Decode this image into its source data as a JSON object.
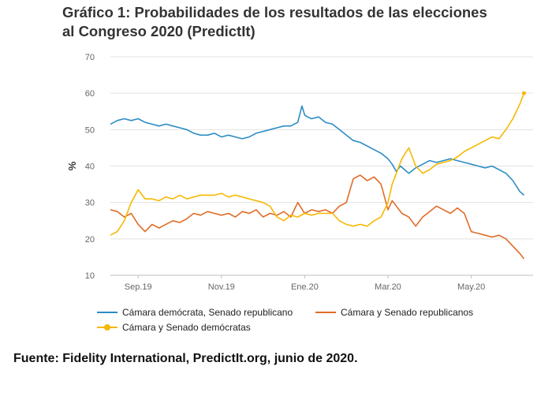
{
  "title_line1": "Gráfico 1: Probabilidades de los resultados de las elecciones",
  "title_line2": "al Congreso 2020 (PredictIt)",
  "source": "Fuente: Fidelity International, PredictIt.org, junio de 2020.",
  "chart_data": {
    "type": "line",
    "title": "Gráfico 1: Probabilidades de los resultados de las elecciones al Congreso 2020 (PredictIt)",
    "ylabel": "%",
    "xlabel": "",
    "ylim": [
      10,
      70
    ],
    "yticks": [
      "10",
      "20",
      "30",
      "40",
      "50",
      "60",
      "70"
    ],
    "xticks": [
      "Sep.19",
      "Nov.19",
      "Ene.20",
      "Mar.20",
      "May.20"
    ],
    "xlim": [
      0,
      300
    ],
    "xtick_positions": [
      20,
      80,
      140,
      200,
      260
    ],
    "grid": "horizontal",
    "legend_position": "bottom",
    "series": [
      {
        "name": "Cámara demócrata, Senado republicano",
        "color": "#2b8cc4",
        "marker": false,
        "x": [
          0,
          5,
          10,
          15,
          20,
          25,
          30,
          35,
          40,
          45,
          50,
          55,
          60,
          65,
          70,
          75,
          80,
          85,
          90,
          95,
          100,
          105,
          110,
          115,
          120,
          125,
          130,
          135,
          138,
          140,
          142,
          145,
          150,
          155,
          160,
          165,
          170,
          175,
          180,
          185,
          190,
          195,
          200,
          203,
          206,
          209,
          212,
          215,
          220,
          225,
          230,
          235,
          240,
          245,
          250,
          255,
          260,
          265,
          270,
          275,
          280,
          285,
          290,
          295,
          298
        ],
        "y": [
          51.5,
          52.5,
          53,
          52.5,
          53,
          52,
          51.5,
          51,
          51.5,
          51,
          50.5,
          50,
          49,
          48.5,
          48.5,
          49,
          48,
          48.5,
          48,
          47.5,
          48,
          49,
          49.5,
          50,
          50.5,
          51,
          51,
          52,
          56.5,
          54,
          53.5,
          53,
          53.5,
          52,
          51.5,
          50,
          48.5,
          47,
          46.5,
          45.5,
          44.5,
          43.5,
          42,
          40.5,
          38.5,
          40,
          39,
          38,
          39.5,
          40.5,
          41.5,
          41,
          41.5,
          42,
          41.5,
          41,
          40.5,
          40,
          39.5,
          40,
          39,
          38,
          36,
          33,
          32
        ]
      },
      {
        "name": "Cámara y Senado republicanos",
        "color": "#e06b27",
        "marker": false,
        "x": [
          0,
          5,
          10,
          15,
          20,
          25,
          30,
          35,
          40,
          45,
          50,
          55,
          60,
          65,
          70,
          75,
          80,
          85,
          90,
          95,
          100,
          105,
          110,
          115,
          120,
          125,
          130,
          135,
          140,
          145,
          150,
          155,
          160,
          165,
          170,
          175,
          180,
          185,
          190,
          195,
          200,
          203,
          206,
          210,
          215,
          220,
          225,
          230,
          235,
          240,
          245,
          250,
          255,
          260,
          265,
          270,
          275,
          280,
          285,
          290,
          295,
          298
        ],
        "y": [
          28,
          27.5,
          26,
          27,
          24,
          22,
          24,
          23,
          24,
          25,
          24.5,
          25.5,
          27,
          26.5,
          27.5,
          27,
          26.5,
          27,
          26,
          27.5,
          27,
          28,
          26,
          27,
          26.5,
          27.5,
          26,
          30,
          27,
          28,
          27.5,
          28,
          27,
          29,
          30,
          36.5,
          37.5,
          36,
          37,
          35,
          28,
          30.5,
          29,
          27,
          26,
          23.5,
          26,
          27.5,
          29,
          28,
          27,
          28.5,
          27,
          22,
          21.5,
          21,
          20.5,
          21,
          20,
          18,
          16,
          14.5
        ]
      },
      {
        "name": "Cámara y Senado demócratas",
        "color": "#f5b800",
        "marker": true,
        "x": [
          0,
          5,
          10,
          15,
          20,
          25,
          30,
          35,
          40,
          45,
          50,
          55,
          60,
          65,
          70,
          75,
          80,
          85,
          90,
          95,
          100,
          105,
          110,
          115,
          120,
          125,
          130,
          135,
          140,
          145,
          150,
          155,
          160,
          165,
          170,
          175,
          180,
          185,
          190,
          195,
          200,
          203,
          206,
          210,
          215,
          220,
          225,
          230,
          235,
          240,
          245,
          250,
          255,
          260,
          265,
          270,
          275,
          280,
          285,
          290,
          295,
          298
        ],
        "y": [
          21,
          22,
          25,
          30,
          33.5,
          31,
          31,
          30.5,
          31.5,
          31,
          32,
          31,
          31.5,
          32,
          32,
          32,
          32.5,
          31.5,
          32,
          31.5,
          31,
          30.5,
          30,
          29,
          26,
          25,
          26.5,
          26,
          27,
          26.5,
          27,
          27,
          27,
          25,
          24,
          23.5,
          24,
          23.5,
          25,
          26,
          30,
          35,
          38,
          42,
          45,
          40,
          38,
          39,
          40.5,
          41,
          41.5,
          42.5,
          44,
          45,
          46,
          47,
          48,
          47.5,
          50,
          53,
          57,
          60
        ]
      }
    ]
  }
}
